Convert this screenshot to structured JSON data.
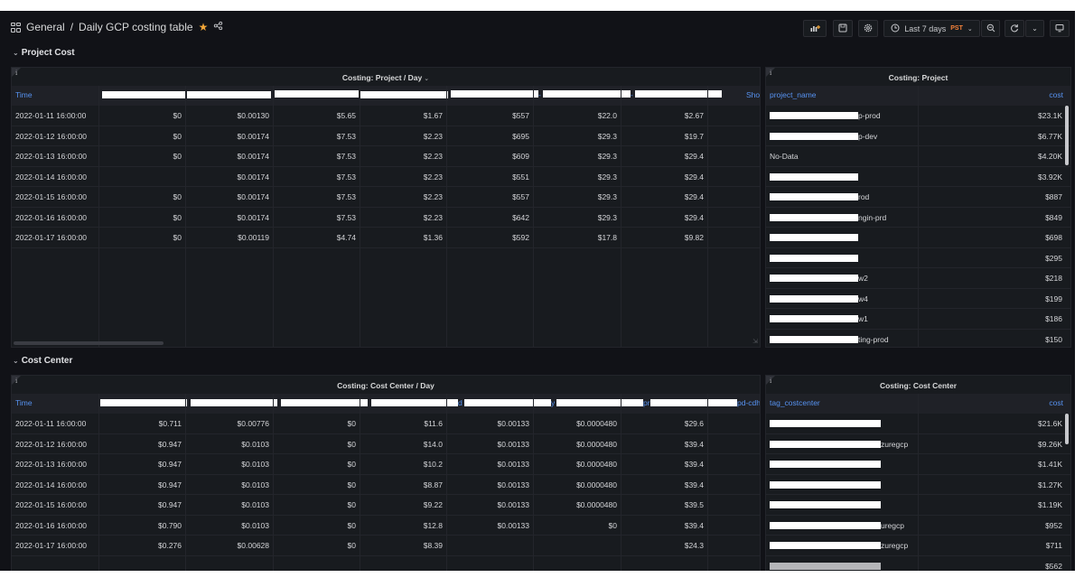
{
  "header": {
    "folder": "General",
    "separator": "/",
    "title": "Daily GCP costing table",
    "time_range": "Last 7 days",
    "timezone": "PST"
  },
  "rows": {
    "project_cost": "Project Cost",
    "cost_center": "Cost Center"
  },
  "panels": {
    "p1": {
      "title": "Costing: Project / Day",
      "info": "i",
      "time_header": "Time",
      "header_fragments": {
        "h3": "-",
        "h5": "-",
        "h6": "-",
        "h8": "Sho"
      },
      "rows": [
        [
          "2022-01-11 16:00:00",
          "$0",
          "$0.00130",
          "$5.65",
          "$1.67",
          "$557",
          "$22.0",
          "$2.67"
        ],
        [
          "2022-01-12 16:00:00",
          "$0",
          "$0.00174",
          "$7.53",
          "$2.23",
          "$695",
          "$29.3",
          "$19.7"
        ],
        [
          "2022-01-13 16:00:00",
          "$0",
          "$0.00174",
          "$7.53",
          "$2.23",
          "$609",
          "$29.3",
          "$29.4"
        ],
        [
          "2022-01-14 16:00:00",
          "",
          "$0.00174",
          "$7.53",
          "$2.23",
          "$551",
          "$29.3",
          "$29.4"
        ],
        [
          "2022-01-15 16:00:00",
          "$0",
          "$0.00174",
          "$7.53",
          "$2.23",
          "$557",
          "$29.3",
          "$29.4"
        ],
        [
          "2022-01-16 16:00:00",
          "$0",
          "$0.00174",
          "$7.53",
          "$2.23",
          "$642",
          "$29.3",
          "$29.4"
        ],
        [
          "2022-01-17 16:00:00",
          "$0",
          "$0.00119",
          "$4.74",
          "$1.36",
          "$592",
          "$17.8",
          "$9.82"
        ]
      ]
    },
    "p2": {
      "title": "Costing: Project",
      "info": "i",
      "col_name": "project_name",
      "col_cost": "cost",
      "rows": [
        [
          "p-prod",
          "$23.1K"
        ],
        [
          "p-dev",
          "$6.77K"
        ],
        [
          "No-Data",
          "$4.20K"
        ],
        [
          "",
          "$3.92K"
        ],
        [
          "rod",
          "$887"
        ],
        [
          "ngin-prd",
          "$849"
        ],
        [
          "",
          "$698"
        ],
        [
          "",
          "$295"
        ],
        [
          "w2",
          "$218"
        ],
        [
          "w4",
          "$199"
        ],
        [
          "w1",
          "$186"
        ],
        [
          "ting-prod",
          "$150"
        ]
      ]
    },
    "p3": {
      "title": "Costing: Cost Center / Day",
      "info": "i",
      "time_header": "Time",
      "header_fragments": {
        "h5": "d",
        "h6": "y",
        "h7": "pr",
        "h8": "pd-cdh"
      },
      "rows": [
        [
          "2022-01-11 16:00:00",
          "$0.711",
          "$0.00776",
          "$0",
          "$11.6",
          "$0.00133",
          "$0.0000480",
          "$29.6"
        ],
        [
          "2022-01-12 16:00:00",
          "$0.947",
          "$0.0103",
          "$0",
          "$14.0",
          "$0.00133",
          "$0.0000480",
          "$39.4"
        ],
        [
          "2022-01-13 16:00:00",
          "$0.947",
          "$0.0103",
          "$0",
          "$10.2",
          "$0.00133",
          "$0.0000480",
          "$39.4"
        ],
        [
          "2022-01-14 16:00:00",
          "$0.947",
          "$0.0103",
          "$0",
          "$8.87",
          "$0.00133",
          "$0.0000480",
          "$39.4"
        ],
        [
          "2022-01-15 16:00:00",
          "$0.947",
          "$0.0103",
          "$0",
          "$9.22",
          "$0.00133",
          "$0.0000480",
          "$39.5"
        ],
        [
          "2022-01-16 16:00:00",
          "$0.790",
          "$0.0103",
          "$0",
          "$12.8",
          "$0.00133",
          "$0",
          "$39.4"
        ],
        [
          "2022-01-17 16:00:00",
          "$0.276",
          "$0.00628",
          "$0",
          "$8.39",
          "",
          "",
          "$24.3"
        ]
      ]
    },
    "p4": {
      "title": "Costing: Cost Center",
      "info": "i",
      "col_name": "tag_costcenter",
      "col_cost": "cost",
      "rows": [
        [
          "",
          "$21.6K"
        ],
        [
          "zuregcp",
          "$9.26K"
        ],
        [
          "",
          "$1.41K"
        ],
        [
          "",
          "$1.27K"
        ],
        [
          "",
          "$1.19K"
        ],
        [
          "uregcp",
          "$952"
        ],
        [
          "zuregcp",
          "$711"
        ],
        [
          "",
          "$562"
        ]
      ]
    }
  },
  "colors": {
    "background": "#111217",
    "panel": "#181b1f",
    "header_text": "#5793f2",
    "star": "#f2a638",
    "timezone": "#f5823a"
  },
  "icons": [
    "grid-icon",
    "star-icon",
    "share-icon",
    "add-panel-icon",
    "save-icon",
    "settings-icon",
    "clock-icon",
    "chevron-down-icon",
    "zoom-out-icon",
    "refresh-icon",
    "tv-icon",
    "info-icon"
  ]
}
